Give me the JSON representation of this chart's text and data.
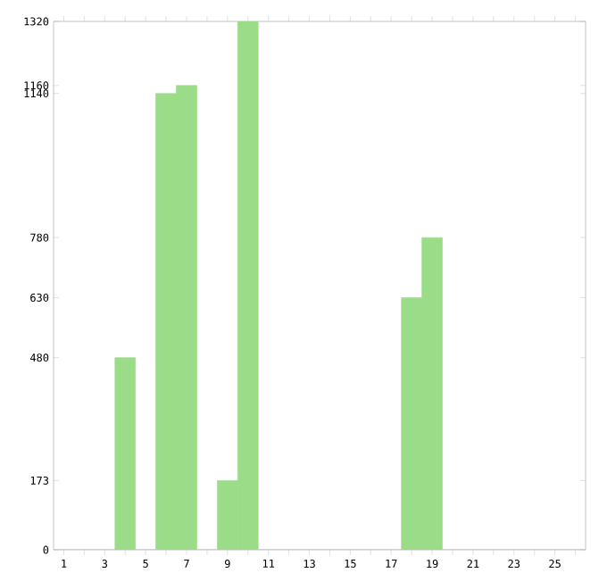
{
  "chart_data": {
    "type": "bar",
    "categories": [
      "1",
      null,
      "3",
      null,
      "5",
      null,
      "7",
      null,
      "9",
      null,
      "11",
      null,
      "13",
      null,
      "15",
      null,
      "17",
      null,
      "19",
      null,
      "21",
      null,
      "23",
      null,
      "25",
      null
    ],
    "values": [
      0,
      0,
      0,
      480,
      0,
      1140,
      1160,
      0,
      173,
      1320,
      0,
      0,
      0,
      0,
      0,
      0,
      0,
      630,
      780,
      0,
      0,
      0,
      0,
      0,
      0,
      0
    ],
    "color": "#9bdc88",
    "ylim": [
      0,
      1320
    ],
    "yticks": [
      0,
      173,
      480,
      630,
      780,
      1140,
      1160,
      1320
    ],
    "grid": false
  }
}
